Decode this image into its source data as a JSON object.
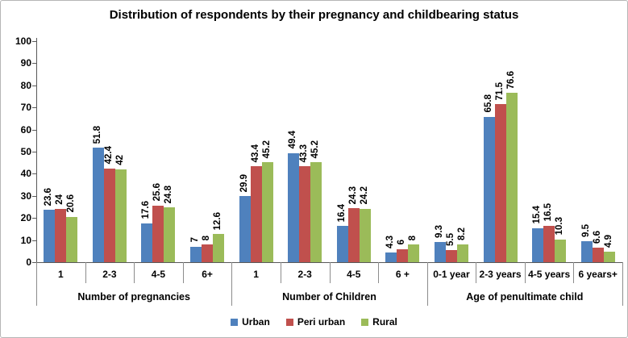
{
  "chart_data": {
    "type": "bar",
    "title": "Distribution of respondents by their pregnancy and childbearing status",
    "xlabel": "",
    "ylabel": "",
    "ylim": [
      0,
      100
    ],
    "ytick_step": 10,
    "grid": false,
    "legend_position": "bottom",
    "value_label_style": "rotated-90-bold",
    "groups": [
      {
        "label": "Number of pregnancies",
        "categories": [
          "1",
          "2-3",
          "4-5",
          "6+"
        ]
      },
      {
        "label": "Number of Children",
        "categories": [
          "1",
          "2-3",
          "4-5",
          "6 +"
        ]
      },
      {
        "label": "Age of penultimate child",
        "categories": [
          "0-1 year",
          "2-3 years",
          "4-5 years",
          "6 years+"
        ]
      }
    ],
    "series": [
      {
        "name": "Urban",
        "color": "#4F81BD",
        "values": [
          23.6,
          51.8,
          17.6,
          7,
          29.9,
          49.4,
          16.4,
          4.3,
          9.3,
          65.8,
          15.4,
          9.5
        ]
      },
      {
        "name": "Peri urban",
        "color": "#C0504D",
        "values": [
          24,
          42.4,
          25.6,
          8,
          43.4,
          43.3,
          24.3,
          6,
          5.5,
          71.5,
          16.5,
          6.6
        ]
      },
      {
        "name": "Rural",
        "color": "#9BBB59",
        "values": [
          20.6,
          42,
          24.8,
          12.6,
          45.2,
          45.2,
          24.2,
          8,
          8.2,
          76.6,
          10.3,
          4.9
        ]
      }
    ],
    "colors": {
      "axis_line": "#595959",
      "separator_line": "#8c8c8c",
      "text": "#000000",
      "figure_border": "#b6b6b6"
    }
  }
}
